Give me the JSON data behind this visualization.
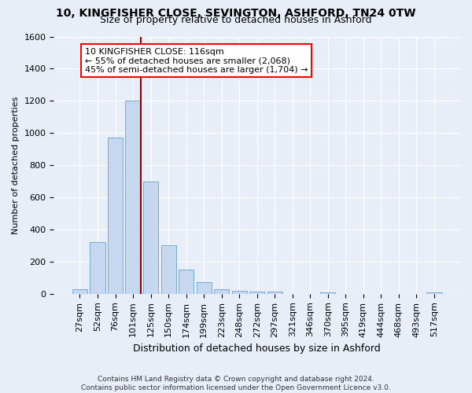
{
  "title_line1": "10, KINGFISHER CLOSE, SEVINGTON, ASHFORD, TN24 0TW",
  "title_line2": "Size of property relative to detached houses in Ashford",
  "xlabel": "Distribution of detached houses by size in Ashford",
  "ylabel": "Number of detached properties",
  "footer": "Contains HM Land Registry data © Crown copyright and database right 2024.\nContains public sector information licensed under the Open Government Licence v3.0.",
  "bin_labels": [
    "27sqm",
    "52sqm",
    "76sqm",
    "101sqm",
    "125sqm",
    "150sqm",
    "174sqm",
    "199sqm",
    "223sqm",
    "248sqm",
    "272sqm",
    "297sqm",
    "321sqm",
    "346sqm",
    "370sqm",
    "395sqm",
    "419sqm",
    "444sqm",
    "468sqm",
    "493sqm",
    "517sqm"
  ],
  "bar_values": [
    30,
    320,
    970,
    1200,
    700,
    300,
    150,
    70,
    30,
    20,
    15,
    15,
    0,
    0,
    10,
    0,
    0,
    0,
    0,
    0,
    10
  ],
  "bar_color": "#c5d8f0",
  "bar_edge_color": "#6aa0cc",
  "highlight_line_color": "#8b0000",
  "annotation_text": "10 KINGFISHER CLOSE: 116sqm\n← 55% of detached houses are smaller (2,068)\n45% of semi-detached houses are larger (1,704) →",
  "ylim": [
    0,
    1600
  ],
  "yticks": [
    0,
    200,
    400,
    600,
    800,
    1000,
    1200,
    1400,
    1600
  ],
  "background_color": "#e8eef8",
  "axes_background": "#e8eef8",
  "grid_color": "#ffffff",
  "title_fontsize": 10,
  "subtitle_fontsize": 9,
  "ylabel_fontsize": 8,
  "xlabel_fontsize": 9,
  "tick_fontsize": 8,
  "annot_fontsize": 8
}
